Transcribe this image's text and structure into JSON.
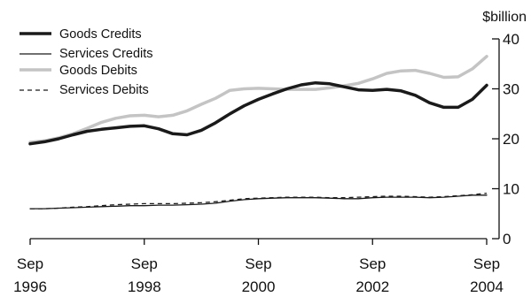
{
  "chart_data": {
    "type": "line",
    "y_unit": "$billion",
    "ylim": [
      0,
      40
    ],
    "y_ticks": [
      "0",
      "10",
      "20",
      "30",
      "40"
    ],
    "x_ticks": [
      {
        "line1": "Sep",
        "line2": "1996"
      },
      {
        "line1": "Sep",
        "line2": "1998"
      },
      {
        "line1": "Sep",
        "line2": "2000"
      },
      {
        "line1": "Sep",
        "line2": "2002"
      },
      {
        "line1": "Sep",
        "line2": "2004"
      }
    ],
    "x": [
      "Sep-1996",
      "Dec-1996",
      "Mar-1997",
      "Jun-1997",
      "Sep-1997",
      "Dec-1997",
      "Mar-1998",
      "Jun-1998",
      "Sep-1998",
      "Dec-1998",
      "Mar-1999",
      "Jun-1999",
      "Sep-1999",
      "Dec-1999",
      "Mar-2000",
      "Jun-2000",
      "Sep-2000",
      "Dec-2000",
      "Mar-2001",
      "Jun-2001",
      "Sep-2001",
      "Dec-2001",
      "Mar-2002",
      "Jun-2002",
      "Sep-2002",
      "Dec-2002",
      "Mar-2003",
      "Jun-2003",
      "Sep-2003",
      "Dec-2003",
      "Mar-2004",
      "Jun-2004",
      "Sep-2004"
    ],
    "grid": false,
    "legend_position": "top-left",
    "series": [
      {
        "name": "Goods Credits",
        "color": "#1a1a1a",
        "style": "solid-thick",
        "values": [
          19.0,
          19.4,
          20.0,
          20.8,
          21.5,
          21.9,
          22.2,
          22.5,
          22.6,
          22.0,
          21.0,
          20.8,
          21.7,
          23.2,
          25.0,
          26.6,
          27.9,
          29.0,
          30.0,
          30.8,
          31.2,
          31.0,
          30.4,
          29.8,
          29.7,
          29.9,
          29.6,
          28.7,
          27.2,
          26.3,
          26.3,
          27.9,
          30.7
        ]
      },
      {
        "name": "Services Credits",
        "color": "#1a1a1a",
        "style": "solid-thin",
        "values": [
          6.0,
          6.0,
          6.1,
          6.2,
          6.3,
          6.4,
          6.5,
          6.6,
          6.6,
          6.7,
          6.7,
          6.8,
          6.9,
          7.1,
          7.5,
          7.8,
          8.0,
          8.1,
          8.2,
          8.2,
          8.2,
          8.1,
          8.0,
          8.0,
          8.2,
          8.3,
          8.3,
          8.3,
          8.2,
          8.3,
          8.5,
          8.7,
          8.7
        ]
      },
      {
        "name": "Goods Debits",
        "color": "#c4c4c4",
        "style": "solid-thick",
        "values": [
          19.3,
          19.6,
          20.2,
          21.0,
          22.1,
          23.3,
          24.1,
          24.6,
          24.7,
          24.4,
          24.7,
          25.6,
          26.9,
          28.1,
          29.7,
          30.0,
          30.1,
          30.0,
          29.9,
          29.9,
          29.9,
          30.2,
          30.6,
          31.1,
          32.0,
          33.1,
          33.6,
          33.7,
          33.1,
          32.3,
          32.4,
          34.0,
          36.5
        ]
      },
      {
        "name": "Services Debits",
        "color": "#1a1a1a",
        "style": "dashed",
        "values": [
          6.0,
          6.0,
          6.1,
          6.3,
          6.4,
          6.6,
          6.8,
          6.9,
          7.0,
          7.0,
          7.0,
          7.1,
          7.2,
          7.4,
          7.7,
          8.0,
          8.1,
          8.2,
          8.3,
          8.3,
          8.3,
          8.2,
          8.2,
          8.3,
          8.4,
          8.5,
          8.5,
          8.4,
          8.3,
          8.4,
          8.6,
          8.8,
          9.1
        ]
      }
    ]
  }
}
